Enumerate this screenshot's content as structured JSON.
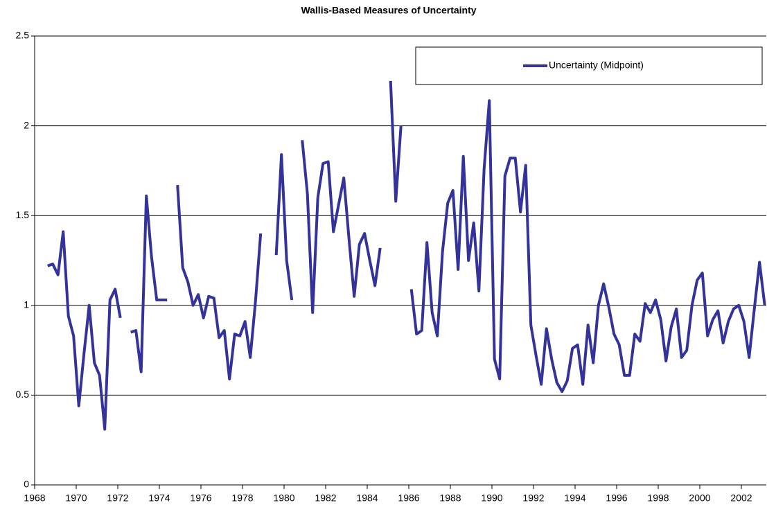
{
  "chart_data": {
    "type": "line",
    "title": "Wallis-Based Measures of Uncertainty",
    "x": [
      1968.625,
      1968.875,
      1969.125,
      1969.375,
      1969.625,
      1969.875,
      1970.125,
      1970.375,
      1970.625,
      1970.875,
      1971.125,
      1971.375,
      1971.625,
      1971.875,
      1972.125,
      1972.375,
      1972.625,
      1972.875,
      1973.125,
      1973.375,
      1973.625,
      1973.875,
      1974.125,
      1974.375,
      1974.625,
      1974.875,
      1975.125,
      1975.375,
      1975.625,
      1975.875,
      1976.125,
      1976.375,
      1976.625,
      1976.875,
      1977.125,
      1977.375,
      1977.625,
      1977.875,
      1978.125,
      1978.375,
      1978.625,
      1978.875,
      1979.125,
      1979.375,
      1979.625,
      1979.875,
      1980.125,
      1980.375,
      1980.625,
      1980.875,
      1981.125,
      1981.375,
      1981.625,
      1981.875,
      1982.125,
      1982.375,
      1982.625,
      1982.875,
      1983.125,
      1983.375,
      1983.625,
      1983.875,
      1984.125,
      1984.375,
      1984.625,
      1984.875,
      1985.125,
      1985.375,
      1985.625,
      1985.875,
      1986.125,
      1986.375,
      1986.625,
      1986.875,
      1987.125,
      1987.375,
      1987.625,
      1987.875,
      1988.125,
      1988.375,
      1988.625,
      1988.875,
      1989.125,
      1989.375,
      1989.625,
      1989.875,
      1990.125,
      1990.375,
      1990.625,
      1990.875,
      1991.125,
      1991.375,
      1991.625,
      1991.875,
      1992.125,
      1992.375,
      1992.625,
      1992.875,
      1993.125,
      1993.375,
      1993.625,
      1993.875,
      1994.125,
      1994.375,
      1994.625,
      1994.875,
      1995.125,
      1995.375,
      1995.625,
      1995.875,
      1996.125,
      1996.375,
      1996.625,
      1996.875,
      1997.125,
      1997.375,
      1997.625,
      1997.875,
      1998.125,
      1998.375,
      1998.625,
      1998.875,
      1999.125,
      1999.375,
      1999.625,
      1999.875,
      2000.125,
      2000.375,
      2000.625,
      2000.875,
      2001.125,
      2001.375,
      2001.625,
      2001.875,
      2002.125,
      2002.375,
      2002.625,
      2002.875,
      2003.125
    ],
    "series": [
      {
        "name": "Uncertainty (Midpoint)",
        "color": "#333399",
        "values": [
          1.22,
          1.23,
          1.17,
          1.41,
          0.94,
          0.83,
          0.44,
          0.73,
          1.0,
          0.68,
          0.61,
          0.31,
          1.03,
          1.09,
          0.93,
          null,
          0.85,
          0.86,
          0.63,
          1.61,
          1.27,
          1.03,
          1.03,
          1.03,
          null,
          1.67,
          1.21,
          1.13,
          1.0,
          1.06,
          0.93,
          1.05,
          1.04,
          0.82,
          0.86,
          0.59,
          0.84,
          0.83,
          0.91,
          0.71,
          1.02,
          1.4,
          null,
          null,
          1.28,
          1.84,
          1.25,
          1.03,
          null,
          1.92,
          1.62,
          0.96,
          1.6,
          1.79,
          1.8,
          1.41,
          1.56,
          1.71,
          1.37,
          1.05,
          1.34,
          1.4,
          1.25,
          1.11,
          1.32,
          null,
          2.25,
          1.58,
          2.0,
          null,
          1.09,
          0.84,
          0.86,
          1.35,
          0.96,
          0.83,
          1.3,
          1.57,
          1.64,
          1.2,
          1.83,
          1.25,
          1.46,
          1.08,
          1.76,
          2.14,
          0.7,
          0.59,
          1.72,
          1.82,
          1.82,
          1.52,
          1.78,
          0.89,
          0.72,
          0.56,
          0.87,
          0.7,
          0.57,
          0.52,
          0.58,
          0.76,
          0.78,
          0.56,
          0.89,
          0.68,
          1.0,
          1.12,
          0.99,
          0.84,
          0.78,
          0.61,
          0.61,
          0.84,
          0.8,
          1.01,
          0.96,
          1.03,
          0.92,
          0.69,
          0.88,
          0.98,
          0.71,
          0.75,
          1.0,
          1.14,
          1.18,
          0.83,
          0.92,
          0.97,
          0.79,
          0.91,
          0.98,
          1.0,
          0.91,
          0.71,
          0.98,
          1.24,
          1.0
        ]
      }
    ],
    "xlim": [
      1968,
      2003.2
    ],
    "xticks": [
      1968,
      1970,
      1972,
      1974,
      1976,
      1978,
      1980,
      1982,
      1984,
      1986,
      1988,
      1990,
      1992,
      1994,
      1996,
      1998,
      2000,
      2002
    ],
    "ylim": [
      0,
      2.5
    ],
    "yticks": [
      0,
      0.5,
      1,
      1.5,
      2,
      2.5
    ],
    "grid": true,
    "legend": "top right"
  }
}
